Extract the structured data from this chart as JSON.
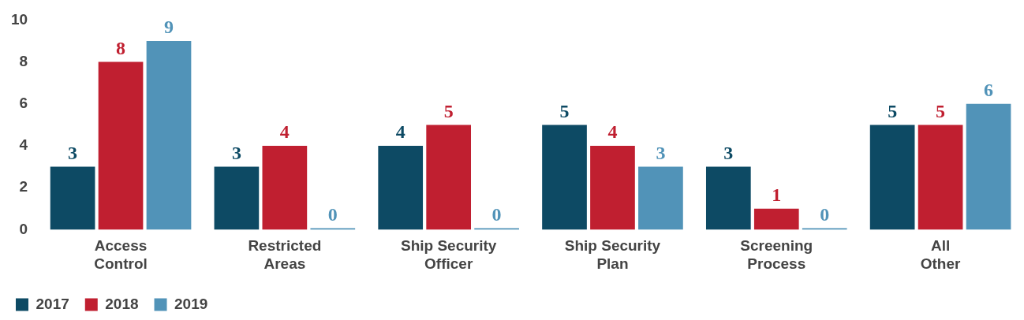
{
  "chart_data": {
    "type": "bar",
    "categories": [
      "Access Control",
      "Restricted Areas",
      "Ship Security Officer",
      "Ship Security Plan",
      "Screening Process",
      "All Other"
    ],
    "series": [
      {
        "name": "2017",
        "color": "#0d4a64",
        "values": [
          3,
          3,
          4,
          5,
          3,
          5
        ]
      },
      {
        "name": "2018",
        "color": "#c01f30",
        "values": [
          8,
          4,
          5,
          4,
          1,
          5
        ]
      },
      {
        "name": "2019",
        "color": "#5193b8",
        "values": [
          9,
          0,
          0,
          3,
          0,
          6
        ]
      }
    ],
    "ylim": [
      0,
      10
    ],
    "yticks": [
      0,
      2,
      4,
      6,
      8,
      10
    ],
    "grid": false,
    "legend": "bottom left",
    "data_labels": true
  }
}
